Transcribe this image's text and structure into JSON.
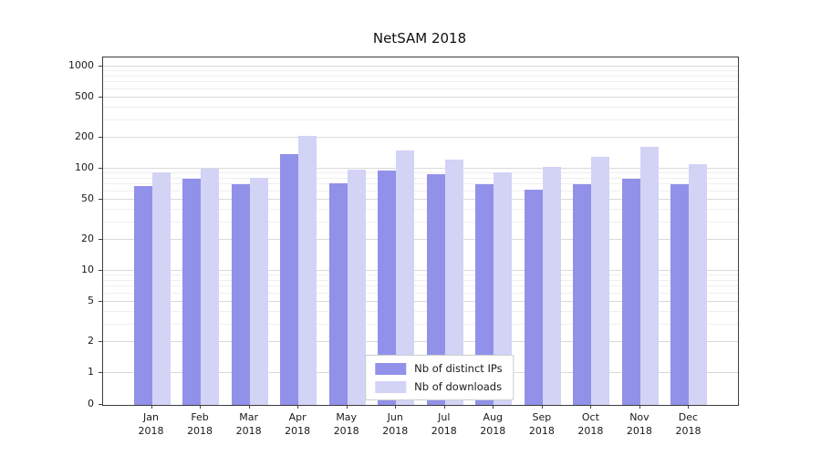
{
  "title": "NetSAM 2018",
  "chart_data": {
    "type": "bar",
    "title": "NetSAM 2018",
    "yscale": "symlog",
    "grid": true,
    "legend_position": "lower center (inside plot)",
    "y_ticks": [
      0,
      1,
      2,
      5,
      10,
      20,
      50,
      100,
      200,
      500,
      1000
    ],
    "ylim": [
      0,
      1000
    ],
    "categories": [
      "Jan 2018",
      "Feb 2018",
      "Mar 2018",
      "Apr 2018",
      "May 2018",
      "Jun 2018",
      "Jul 2018",
      "Aug 2018",
      "Sep 2018",
      "Oct 2018",
      "Nov 2018",
      "Dec 2018"
    ],
    "x_tick_labels": [
      {
        "line1": "Jan",
        "line2": "2018"
      },
      {
        "line1": "Feb",
        "line2": "2018"
      },
      {
        "line1": "Mar",
        "line2": "2018"
      },
      {
        "line1": "Apr",
        "line2": "2018"
      },
      {
        "line1": "May",
        "line2": "2018"
      },
      {
        "line1": "Jun",
        "line2": "2018"
      },
      {
        "line1": "Jul",
        "line2": "2018"
      },
      {
        "line1": "Aug",
        "line2": "2018"
      },
      {
        "line1": "Sep",
        "line2": "2018"
      },
      {
        "line1": "Oct",
        "line2": "2018"
      },
      {
        "line1": "Nov",
        "line2": "2018"
      },
      {
        "line1": "Dec",
        "line2": "2018"
      }
    ],
    "series": [
      {
        "name": "Nb of distinct IPs",
        "color": "#9191e9",
        "values": [
          68,
          80,
          70,
          140,
          72,
          96,
          89,
          70,
          62,
          70,
          80,
          70
        ]
      },
      {
        "name": "Nb of downloads",
        "color": "#d3d3f6",
        "values": [
          92,
          100,
          82,
          210,
          99,
          150,
          122,
          92,
          104,
          132,
          163,
          112
        ]
      }
    ]
  }
}
